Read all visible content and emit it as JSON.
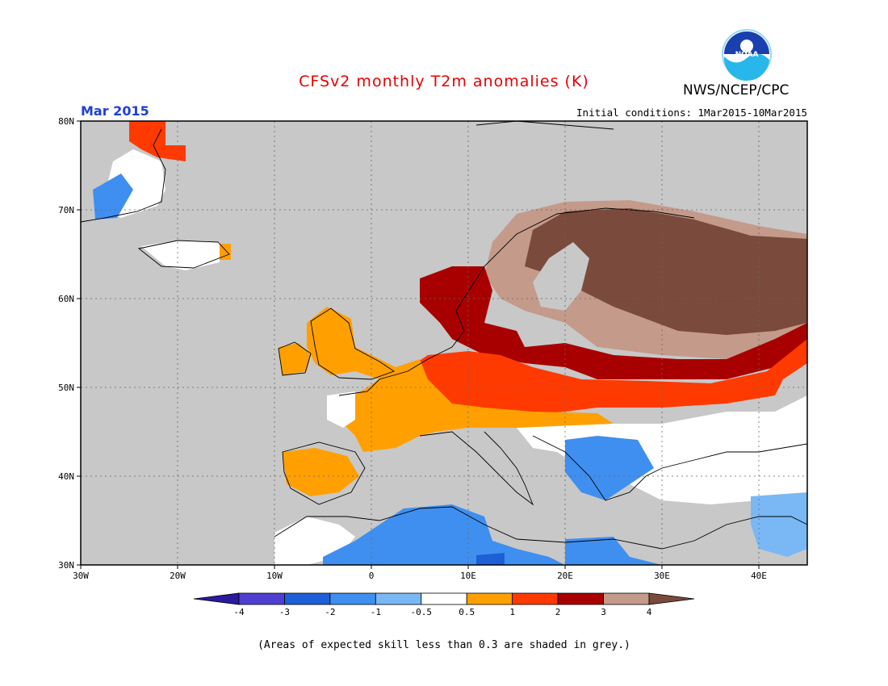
{
  "header": {
    "title": "CFSv2 monthly T2m anomalies (K)",
    "agency": "NWS/NCEP/CPC",
    "logo_text": "NOAA",
    "period": "Mar 2015",
    "initial_conditions": "Initial conditions: 1Mar2015-10Mar2015"
  },
  "map": {
    "region": "Europe",
    "lon_range": [
      -30,
      45
    ],
    "lat_range": [
      30,
      80
    ],
    "lat_ticks": [
      "80N",
      "70N",
      "60N",
      "50N",
      "40N",
      "30N"
    ],
    "lon_ticks": [
      "30W",
      "20W",
      "10W",
      "0",
      "10E",
      "20E",
      "30E",
      "40E"
    ],
    "background_color": "#c8c8c8",
    "grid": "dotted",
    "anomaly_regions": [
      {
        "area": "Scandinavia / northwest Russia",
        "category": "3 to 4",
        "color": "#c49a8b"
      },
      {
        "area": "Northwest Russia / Kola",
        "category": "> 4",
        "color": "#7a4a3c"
      },
      {
        "area": "Baltic / Poland / Belarus",
        "category": "2 to 3",
        "color": "#a80000"
      },
      {
        "area": "Central Europe / Ukraine",
        "category": "1 to 2",
        "color": "#ff3a00"
      },
      {
        "area": "France / UK / Iberia",
        "category": "0.5 to 1",
        "color": "#ffa000"
      },
      {
        "area": "North Africa / Balkans",
        "category": "-1 to -2",
        "color": "#3f8ff0"
      },
      {
        "area": "Eastern Mediterranean",
        "category": "-0.5 to 0.5",
        "color": "#ffffff"
      }
    ]
  },
  "colorbar": {
    "ticks": [
      "-4",
      "-3",
      "-2",
      "-1",
      "-0.5",
      "0.5",
      "1",
      "2",
      "3",
      "4"
    ],
    "colors": [
      "#2a1a9e",
      "#4f3fd0",
      "#1d5fd6",
      "#3f8ff0",
      "#7ab8f5",
      "#ffffff",
      "#ffa000",
      "#ff3a00",
      "#a80000",
      "#c49a8b",
      "#7a4a3c"
    ]
  },
  "footnote": "(Areas of expected skill less than 0.3 are shaded in grey.)"
}
